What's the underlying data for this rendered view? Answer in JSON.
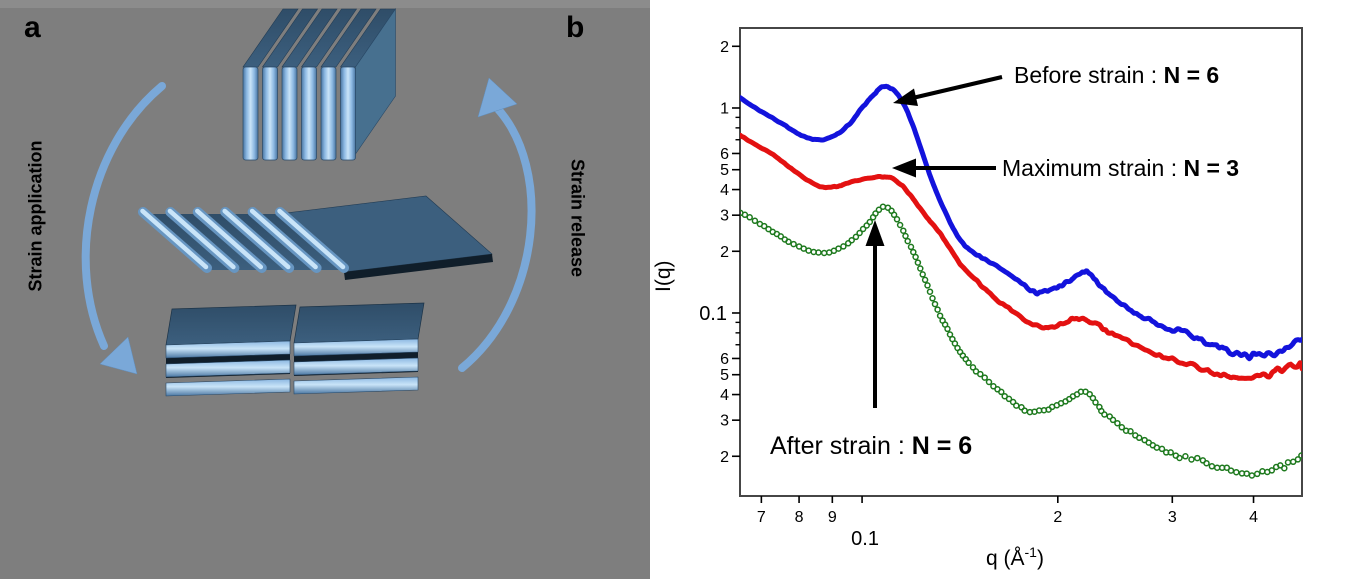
{
  "figure": {
    "panel_a": {
      "label": "a",
      "left_rotated_label": "Strain application",
      "right_rotated_label": "Strain release",
      "background_color": "#7e7e7e",
      "arrow_color": "#7aa8d8",
      "arrow_outline": "#6190c0",
      "plate_front_bright": "#c9e4f8",
      "plate_front_light": "#8cb8e2",
      "plate_front_dark": "#4a76a2",
      "plate_top_dark": "#3c5f7e",
      "plate_top_darker": "#2f4d68",
      "plate_side": "#47708f",
      "plate_shadow": "#101e2a",
      "top_stack_plate_count": 6,
      "sheared_stack_plate_count": 6,
      "bottom_group_count": 2,
      "bottom_plates_per_group": 3
    },
    "panel_b": {
      "label": "b",
      "annotations": {
        "before": {
          "regular": "Before strain : ",
          "bold": "N = 6"
        },
        "maximum": {
          "regular": "Maximum strain : ",
          "bold": "N = 3"
        },
        "after": {
          "regular": "After strain : ",
          "bold": "N = 6"
        }
      },
      "xlabel_base": "q (Å",
      "xlabel_sup": "-1",
      "xlabel_close": ")"
    }
  },
  "chart_data": {
    "type": "line",
    "title": "",
    "xlabel": "q (Å^-1)",
    "ylabel": "I(q)",
    "x_axis": {
      "label": "q (Å^-1)",
      "scale": "log",
      "range": [
        0.0649,
        0.4749
      ],
      "ticks": [
        {
          "v": 0.07,
          "label": "7"
        },
        {
          "v": 0.08,
          "label": "8"
        },
        {
          "v": 0.09,
          "label": "9"
        },
        {
          "v": 0.1,
          "label": "0.1",
          "big": true
        },
        {
          "v": 0.2,
          "label": "2"
        },
        {
          "v": 0.3,
          "label": "3"
        },
        {
          "v": 0.4,
          "label": "4"
        }
      ]
    },
    "y_axis": {
      "label": "I(q)",
      "scale": "log",
      "range": [
        0.0128,
        2.456
      ],
      "ticks": [
        {
          "v": 2,
          "label": "2"
        },
        {
          "v": 1,
          "label": "1"
        },
        {
          "v": 0.6,
          "label": "6"
        },
        {
          "v": 0.5,
          "label": "5"
        },
        {
          "v": 0.4,
          "label": "4"
        },
        {
          "v": 0.3,
          "label": "3"
        },
        {
          "v": 0.2,
          "label": "2"
        },
        {
          "v": 0.1,
          "label": "0.1",
          "big": true
        },
        {
          "v": 0.06,
          "label": "6"
        },
        {
          "v": 0.05,
          "label": "5"
        },
        {
          "v": 0.04,
          "label": "4"
        },
        {
          "v": 0.03,
          "label": "3"
        },
        {
          "v": 0.02,
          "label": "2"
        }
      ],
      "minor_ticks": [
        0.9,
        0.8,
        0.7,
        0.09,
        0.08,
        0.07
      ]
    },
    "grid": false,
    "legend": "annotated arrows",
    "series": [
      {
        "name": "Before strain : N = 6",
        "color": "#1313dc",
        "marker": "plus-dense",
        "points": [
          [
            0.065,
            1.12
          ],
          [
            0.07,
            0.96
          ],
          [
            0.075,
            0.845
          ],
          [
            0.08,
            0.745
          ],
          [
            0.0847,
            0.7
          ],
          [
            0.09,
            0.725
          ],
          [
            0.095,
            0.82
          ],
          [
            0.1,
            1.0
          ],
          [
            0.1045,
            1.17
          ],
          [
            0.108,
            1.27
          ],
          [
            0.1125,
            1.2
          ],
          [
            0.118,
            0.92
          ],
          [
            0.125,
            0.55
          ],
          [
            0.132,
            0.35
          ],
          [
            0.1415,
            0.227
          ],
          [
            0.15,
            0.193
          ],
          [
            0.161,
            0.171
          ],
          [
            0.175,
            0.14
          ],
          [
            0.186,
            0.125
          ],
          [
            0.196,
            0.13
          ],
          [
            0.207,
            0.142
          ],
          [
            0.219,
            0.158
          ],
          [
            0.228,
            0.148
          ],
          [
            0.238,
            0.125
          ],
          [
            0.252,
            0.108
          ],
          [
            0.27,
            0.0955
          ],
          [
            0.29,
            0.0875
          ],
          [
            0.315,
            0.079
          ],
          [
            0.34,
            0.072
          ],
          [
            0.365,
            0.0655
          ],
          [
            0.386,
            0.061
          ],
          [
            0.41,
            0.0625
          ],
          [
            0.44,
            0.066
          ],
          [
            0.475,
            0.076
          ]
        ]
      },
      {
        "name": "Maximum strain : N = 3",
        "color": "#e31111",
        "marker": "plus-dense",
        "points": [
          [
            0.065,
            0.73
          ],
          [
            0.07,
            0.64
          ],
          [
            0.075,
            0.555
          ],
          [
            0.08,
            0.475
          ],
          [
            0.0866,
            0.412
          ],
          [
            0.0925,
            0.418
          ],
          [
            0.0958,
            0.435
          ],
          [
            0.1066,
            0.461
          ],
          [
            0.112,
            0.448
          ],
          [
            0.118,
            0.385
          ],
          [
            0.125,
            0.3
          ],
          [
            0.133,
            0.235
          ],
          [
            0.1415,
            0.175
          ],
          [
            0.152,
            0.138
          ],
          [
            0.163,
            0.113
          ],
          [
            0.175,
            0.096
          ],
          [
            0.1914,
            0.0845
          ],
          [
            0.202,
            0.0885
          ],
          [
            0.214,
            0.0944
          ],
          [
            0.225,
            0.0905
          ],
          [
            0.238,
            0.0815
          ],
          [
            0.255,
            0.0745
          ],
          [
            0.277,
            0.065
          ],
          [
            0.3,
            0.059
          ],
          [
            0.331,
            0.054
          ],
          [
            0.355,
            0.0505
          ],
          [
            0.379,
            0.048
          ],
          [
            0.41,
            0.0495
          ],
          [
            0.44,
            0.0525
          ],
          [
            0.475,
            0.056
          ]
        ]
      },
      {
        "name": "After strain : N = 6",
        "color": "#1d791d",
        "marker": "open-circle",
        "points": [
          [
            0.065,
            0.311
          ],
          [
            0.07,
            0.27
          ],
          [
            0.075,
            0.235
          ],
          [
            0.08,
            0.21
          ],
          [
            0.0866,
            0.196
          ],
          [
            0.092,
            0.205
          ],
          [
            0.0975,
            0.232
          ],
          [
            0.102,
            0.272
          ],
          [
            0.1077,
            0.329
          ],
          [
            0.112,
            0.302
          ],
          [
            0.118,
            0.22
          ],
          [
            0.125,
            0.145
          ],
          [
            0.133,
            0.092
          ],
          [
            0.1415,
            0.065
          ],
          [
            0.152,
            0.05
          ],
          [
            0.163,
            0.0415
          ],
          [
            0.172,
            0.036
          ],
          [
            0.1812,
            0.0329
          ],
          [
            0.192,
            0.0338
          ],
          [
            0.203,
            0.036
          ],
          [
            0.211,
            0.0385
          ],
          [
            0.218,
            0.0412
          ],
          [
            0.2245,
            0.0398
          ],
          [
            0.235,
            0.033
          ],
          [
            0.248,
            0.0285
          ],
          [
            0.262,
            0.0255
          ],
          [
            0.28,
            0.0225
          ],
          [
            0.3,
            0.0207
          ],
          [
            0.33,
            0.019
          ],
          [
            0.36,
            0.0175
          ],
          [
            0.386,
            0.0166
          ],
          [
            0.42,
            0.0172
          ],
          [
            0.45,
            0.0185
          ],
          [
            0.475,
            0.0198
          ]
        ]
      }
    ]
  }
}
